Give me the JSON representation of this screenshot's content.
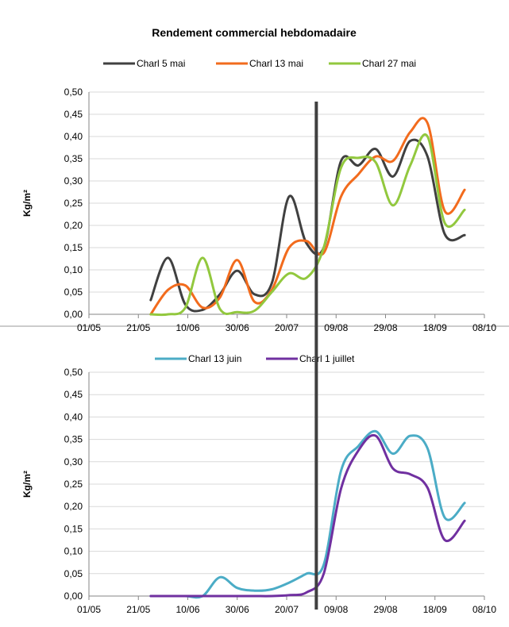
{
  "chart_data": [
    {
      "type": "line",
      "title": "Rendement commercial hebdomadaire",
      "xlabel": "",
      "ylabel": "Kg/m²",
      "x_ticks": [
        "01/05",
        "21/05",
        "10/06",
        "30/06",
        "20/07",
        "09/08",
        "29/08",
        "18/09",
        "08/10"
      ],
      "y_ticks": [
        "0,00",
        "0,05",
        "0,10",
        "0,15",
        "0,20",
        "0,25",
        "0,30",
        "0,35",
        "0,40",
        "0,45",
        "0,50"
      ],
      "xlim": [
        "2012-05-01",
        "2012-10-08"
      ],
      "ylim": [
        0,
        0.5
      ],
      "grid": "horizontal",
      "legend": "top",
      "series": [
        {
          "name": "Charl 5 mai",
          "color": "#404040",
          "points": [
            [
              "2012-05-26",
              0.032
            ],
            [
              "2012-06-02",
              0.127
            ],
            [
              "2012-06-09",
              0.022
            ],
            [
              "2012-06-16",
              0.01
            ],
            [
              "2012-06-23",
              0.045
            ],
            [
              "2012-06-30",
              0.098
            ],
            [
              "2012-07-07",
              0.045
            ],
            [
              "2012-07-14",
              0.07
            ],
            [
              "2012-07-21",
              0.265
            ],
            [
              "2012-07-28",
              0.16
            ],
            [
              "2012-08-04",
              0.15
            ],
            [
              "2012-08-11",
              0.345
            ],
            [
              "2012-08-18",
              0.335
            ],
            [
              "2012-08-25",
              0.372
            ],
            [
              "2012-09-01",
              0.31
            ],
            [
              "2012-09-08",
              0.39
            ],
            [
              "2012-09-15",
              0.355
            ],
            [
              "2012-09-22",
              0.18
            ],
            [
              "2012-09-30",
              0.178
            ]
          ]
        },
        {
          "name": "Charl 13 mai",
          "color": "#F26B1D",
          "points": [
            [
              "2012-05-26",
              0.0
            ],
            [
              "2012-06-02",
              0.055
            ],
            [
              "2012-06-09",
              0.065
            ],
            [
              "2012-06-16",
              0.015
            ],
            [
              "2012-06-23",
              0.038
            ],
            [
              "2012-06-30",
              0.122
            ],
            [
              "2012-07-07",
              0.028
            ],
            [
              "2012-07-14",
              0.055
            ],
            [
              "2012-07-21",
              0.15
            ],
            [
              "2012-07-28",
              0.165
            ],
            [
              "2012-08-04",
              0.138
            ],
            [
              "2012-08-11",
              0.265
            ],
            [
              "2012-08-18",
              0.315
            ],
            [
              "2012-08-25",
              0.355
            ],
            [
              "2012-09-01",
              0.345
            ],
            [
              "2012-09-08",
              0.41
            ],
            [
              "2012-09-15",
              0.43
            ],
            [
              "2012-09-22",
              0.232
            ],
            [
              "2012-09-30",
              0.28
            ]
          ]
        },
        {
          "name": "Charl 27 mai",
          "color": "#92C83E",
          "points": [
            [
              "2012-05-26",
              0.0
            ],
            [
              "2012-06-02",
              0.0
            ],
            [
              "2012-06-09",
              0.015
            ],
            [
              "2012-06-16",
              0.127
            ],
            [
              "2012-06-23",
              0.012
            ],
            [
              "2012-06-30",
              0.005
            ],
            [
              "2012-07-07",
              0.008
            ],
            [
              "2012-07-14",
              0.05
            ],
            [
              "2012-07-21",
              0.092
            ],
            [
              "2012-07-28",
              0.082
            ],
            [
              "2012-08-04",
              0.15
            ],
            [
              "2012-08-11",
              0.33
            ],
            [
              "2012-08-18",
              0.352
            ],
            [
              "2012-08-25",
              0.342
            ],
            [
              "2012-09-01",
              0.245
            ],
            [
              "2012-09-08",
              0.335
            ],
            [
              "2012-09-15",
              0.4
            ],
            [
              "2012-09-22",
              0.205
            ],
            [
              "2012-09-30",
              0.235
            ]
          ]
        }
      ]
    },
    {
      "type": "line",
      "title": "",
      "xlabel": "",
      "ylabel": "Kg/m²",
      "x_ticks": [
        "01/05",
        "21/05",
        "10/06",
        "30/06",
        "20/07",
        "09/08",
        "29/08",
        "18/09",
        "08/10"
      ],
      "y_ticks": [
        "0,00",
        "0,05",
        "0,10",
        "0,15",
        "0,20",
        "0,25",
        "0,30",
        "0,35",
        "0,40",
        "0,45",
        "0,50"
      ],
      "xlim": [
        "2012-05-01",
        "2012-10-08"
      ],
      "ylim": [
        0,
        0.5
      ],
      "grid": "horizontal",
      "legend": "top",
      "series": [
        {
          "name": "Charl 13 juin",
          "color": "#4BACC6",
          "points": [
            [
              "2012-05-26",
              0.0
            ],
            [
              "2012-06-02",
              0.0
            ],
            [
              "2012-06-09",
              0.0
            ],
            [
              "2012-06-16",
              0.0
            ],
            [
              "2012-06-23",
              0.042
            ],
            [
              "2012-06-30",
              0.018
            ],
            [
              "2012-07-07",
              0.012
            ],
            [
              "2012-07-14",
              0.015
            ],
            [
              "2012-07-21",
              0.03
            ],
            [
              "2012-07-28",
              0.05
            ],
            [
              "2012-08-04",
              0.07
            ],
            [
              "2012-08-11",
              0.28
            ],
            [
              "2012-08-18",
              0.335
            ],
            [
              "2012-08-25",
              0.368
            ],
            [
              "2012-09-01",
              0.318
            ],
            [
              "2012-09-08",
              0.358
            ],
            [
              "2012-09-15",
              0.33
            ],
            [
              "2012-09-22",
              0.175
            ],
            [
              "2012-09-30",
              0.208
            ]
          ]
        },
        {
          "name": "Charl 1 juillet",
          "color": "#7030A0",
          "points": [
            [
              "2012-05-26",
              0.0
            ],
            [
              "2012-06-02",
              0.0
            ],
            [
              "2012-06-09",
              0.0
            ],
            [
              "2012-06-16",
              0.0
            ],
            [
              "2012-06-23",
              0.0
            ],
            [
              "2012-06-30",
              0.0
            ],
            [
              "2012-07-07",
              0.0
            ],
            [
              "2012-07-14",
              0.0
            ],
            [
              "2012-07-21",
              0.002
            ],
            [
              "2012-07-28",
              0.008
            ],
            [
              "2012-08-04",
              0.05
            ],
            [
              "2012-08-11",
              0.24
            ],
            [
              "2012-08-18",
              0.325
            ],
            [
              "2012-08-25",
              0.358
            ],
            [
              "2012-09-01",
              0.285
            ],
            [
              "2012-09-08",
              0.272
            ],
            [
              "2012-09-15",
              0.242
            ],
            [
              "2012-09-22",
              0.125
            ],
            [
              "2012-09-30",
              0.168
            ]
          ]
        }
      ]
    }
  ],
  "marker_date": "2012-08-01"
}
